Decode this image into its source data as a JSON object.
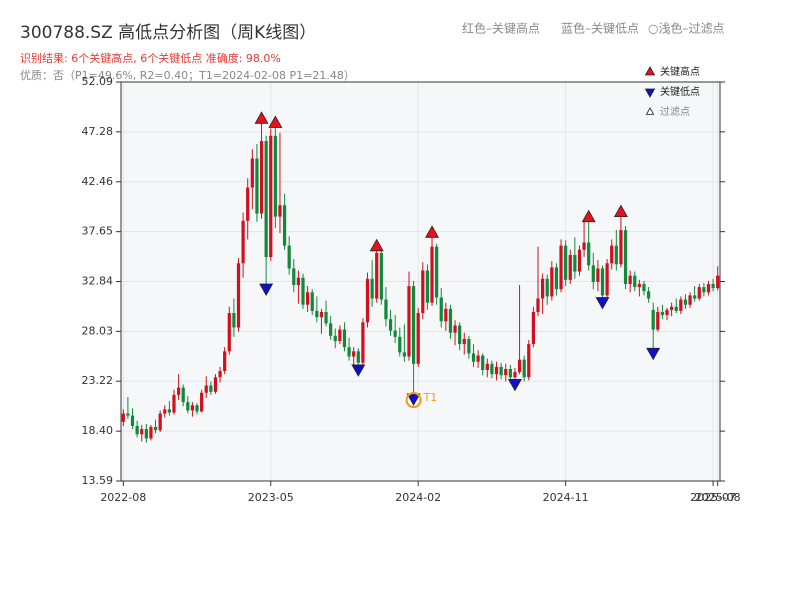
{
  "chart_data": {
    "type": "candlestick",
    "title": "300788.SZ 高低点分析图（周K线图）",
    "subtitle": "识别结果: 6个关键高点, 6个关键低点  准确度: 98.0%",
    "note": "优质：否（P1=49.6%, R2=0.40；T1=2024-02-08 P1=21.48）",
    "header_legend": [
      "红色–关键高点",
      "蓝色–关键低点",
      "○浅色–过滤点"
    ],
    "legend": [
      {
        "name": "关键高点",
        "color": "#e8101a"
      },
      {
        "name": "关键低点",
        "color": "#1010cc"
      },
      {
        "name": "过滤点",
        "color": "#ffffff"
      }
    ],
    "legend_position": "upper right",
    "up_color": "#d0101e",
    "down_color": "#108a3a",
    "ylim": [
      13.59,
      52.09
    ],
    "yticks": [
      13.59,
      {
        "value": 18.4,
        "label": "18.40"
      },
      23.22,
      28.03,
      32.84,
      37.65,
      42.46,
      47.28,
      52.09
    ],
    "xticks": [
      {
        "value": 0,
        "label": "2022-08"
      },
      {
        "value": 32,
        "label": "2023-05"
      },
      {
        "value": 64,
        "label": "2024-02"
      },
      {
        "value": 96,
        "label": "2024-11"
      },
      {
        "value": 128,
        "label": "2025-07"
      },
      {
        "value": 129,
        "label": "2025-08"
      }
    ],
    "grid": true,
    "key_highs": [
      30,
      33,
      55,
      67,
      101,
      108
    ],
    "key_lows": [
      31,
      51,
      63,
      85,
      104,
      115
    ],
    "annotations": [
      {
        "text": "T1",
        "index": 63,
        "color": "#f39c12"
      }
    ],
    "candles": [
      [
        19.3,
        20.5,
        18.9,
        20.1
      ],
      [
        20.1,
        21.7,
        19.6,
        19.9
      ],
      [
        19.9,
        20.6,
        18.6,
        18.9
      ],
      [
        18.9,
        19.4,
        17.8,
        18.1
      ],
      [
        18.1,
        19.0,
        17.4,
        18.6
      ],
      [
        18.6,
        19.1,
        17.3,
        17.7
      ],
      [
        17.7,
        19.0,
        17.5,
        18.8
      ],
      [
        18.8,
        19.5,
        18.2,
        18.5
      ],
      [
        18.5,
        20.4,
        18.3,
        20.1
      ],
      [
        20.1,
        20.9,
        19.7,
        20.5
      ],
      [
        20.5,
        21.3,
        19.9,
        20.2
      ],
      [
        20.2,
        22.4,
        20.0,
        21.9
      ],
      [
        21.9,
        23.9,
        21.4,
        22.6
      ],
      [
        22.6,
        22.9,
        20.8,
        21.2
      ],
      [
        21.2,
        21.8,
        20.1,
        20.4
      ],
      [
        20.4,
        21.2,
        19.8,
        20.9
      ],
      [
        20.9,
        21.1,
        20.0,
        20.3
      ],
      [
        20.3,
        22.4,
        20.2,
        22.1
      ],
      [
        22.1,
        23.7,
        21.6,
        22.8
      ],
      [
        22.8,
        23.2,
        21.9,
        22.2
      ],
      [
        22.2,
        23.9,
        22.0,
        23.6
      ],
      [
        23.6,
        24.6,
        23.1,
        24.2
      ],
      [
        24.2,
        26.5,
        23.9,
        26.1
      ],
      [
        26.1,
        30.4,
        25.8,
        29.8
      ],
      [
        29.8,
        31.2,
        27.5,
        28.4
      ],
      [
        28.4,
        35.1,
        28.0,
        34.6
      ],
      [
        34.6,
        39.5,
        33.2,
        38.7
      ],
      [
        38.7,
        42.8,
        36.9,
        41.9
      ],
      [
        41.9,
        45.6,
        39.8,
        44.7
      ],
      [
        44.7,
        46.1,
        38.6,
        39.4
      ],
      [
        39.4,
        48.7,
        38.9,
        46.4
      ],
      [
        46.4,
        46.9,
        32.0,
        35.2
      ],
      [
        35.2,
        47.6,
        34.8,
        46.9
      ],
      [
        46.9,
        48.3,
        38.0,
        39.1
      ],
      [
        39.1,
        47.2,
        37.5,
        40.2
      ],
      [
        40.2,
        41.3,
        35.9,
        36.3
      ],
      [
        36.3,
        37.2,
        33.5,
        34.1
      ],
      [
        34.1,
        35.0,
        31.8,
        32.5
      ],
      [
        32.5,
        33.9,
        30.7,
        33.2
      ],
      [
        33.2,
        33.6,
        30.2,
        30.6
      ],
      [
        30.6,
        32.4,
        29.9,
        31.8
      ],
      [
        31.8,
        32.1,
        29.6,
        30.0
      ],
      [
        30.0,
        31.4,
        28.9,
        29.4
      ],
      [
        29.4,
        30.2,
        27.8,
        29.9
      ],
      [
        29.9,
        31.0,
        28.5,
        28.8
      ],
      [
        28.8,
        29.5,
        27.2,
        27.6
      ],
      [
        27.6,
        28.3,
        26.4,
        27.1
      ],
      [
        27.1,
        28.6,
        26.8,
        28.2
      ],
      [
        28.2,
        28.9,
        26.1,
        26.5
      ],
      [
        26.5,
        27.4,
        25.2,
        25.6
      ],
      [
        25.6,
        26.5,
        24.8,
        26.1
      ],
      [
        26.1,
        26.4,
        24.2,
        25.0
      ],
      [
        25.0,
        29.3,
        24.8,
        28.9
      ],
      [
        28.9,
        33.7,
        28.4,
        33.1
      ],
      [
        33.1,
        34.9,
        30.4,
        31.2
      ],
      [
        31.2,
        36.4,
        30.8,
        35.6
      ],
      [
        35.6,
        35.9,
        30.6,
        31.1
      ],
      [
        31.1,
        32.3,
        28.5,
        29.2
      ],
      [
        29.2,
        30.1,
        27.6,
        28.1
      ],
      [
        28.1,
        29.6,
        26.9,
        27.5
      ],
      [
        27.5,
        28.4,
        25.6,
        26.0
      ],
      [
        26.0,
        28.7,
        25.1,
        25.6
      ],
      [
        25.6,
        33.8,
        25.2,
        32.4
      ],
      [
        32.4,
        32.9,
        21.4,
        24.9
      ],
      [
        24.9,
        30.3,
        24.6,
        29.8
      ],
      [
        29.8,
        34.7,
        29.2,
        33.9
      ],
      [
        33.9,
        34.5,
        30.1,
        30.8
      ],
      [
        30.8,
        37.7,
        30.5,
        36.2
      ],
      [
        36.2,
        36.5,
        30.6,
        31.3
      ],
      [
        31.3,
        32.2,
        28.4,
        29.0
      ],
      [
        29.0,
        30.8,
        28.1,
        30.2
      ],
      [
        30.2,
        30.6,
        27.3,
        27.9
      ],
      [
        27.9,
        29.1,
        26.7,
        28.6
      ],
      [
        28.6,
        28.9,
        26.2,
        26.8
      ],
      [
        26.8,
        27.9,
        25.8,
        27.3
      ],
      [
        27.3,
        27.6,
        25.4,
        25.9
      ],
      [
        25.9,
        26.8,
        24.6,
        25.1
      ],
      [
        25.1,
        26.2,
        24.5,
        25.7
      ],
      [
        25.7,
        25.9,
        23.8,
        24.3
      ],
      [
        24.3,
        25.4,
        23.6,
        24.9
      ],
      [
        24.9,
        25.2,
        23.5,
        23.9
      ],
      [
        23.9,
        25.1,
        23.3,
        24.6
      ],
      [
        24.6,
        25.0,
        23.4,
        23.8
      ],
      [
        23.8,
        24.9,
        23.2,
        24.4
      ],
      [
        24.4,
        24.8,
        23.0,
        23.6
      ],
      [
        23.6,
        24.5,
        22.8,
        24.1
      ],
      [
        24.1,
        32.5,
        23.9,
        25.3
      ],
      [
        25.3,
        25.7,
        23.2,
        23.6
      ],
      [
        23.6,
        27.2,
        23.3,
        26.8
      ],
      [
        26.8,
        30.4,
        26.5,
        29.9
      ],
      [
        29.9,
        36.2,
        29.5,
        31.2
      ],
      [
        31.2,
        33.6,
        29.7,
        33.1
      ],
      [
        33.1,
        33.5,
        30.6,
        31.4
      ],
      [
        31.4,
        34.8,
        31.0,
        34.2
      ],
      [
        34.2,
        34.6,
        31.5,
        32.1
      ],
      [
        32.1,
        36.9,
        31.8,
        36.3
      ],
      [
        36.3,
        36.8,
        32.4,
        33.0
      ],
      [
        33.0,
        35.9,
        32.6,
        35.4
      ],
      [
        35.4,
        37.1,
        33.1,
        33.8
      ],
      [
        33.8,
        36.3,
        33.4,
        35.9
      ],
      [
        35.9,
        38.7,
        35.2,
        36.6
      ],
      [
        36.6,
        39.2,
        33.9,
        34.4
      ],
      [
        34.4,
        35.6,
        32.1,
        32.8
      ],
      [
        32.8,
        34.9,
        31.9,
        34.1
      ],
      [
        34.1,
        34.4,
        30.7,
        31.5
      ],
      [
        31.5,
        35.0,
        31.2,
        34.6
      ],
      [
        34.6,
        36.9,
        34.0,
        36.3
      ],
      [
        36.3,
        37.8,
        33.9,
        34.5
      ],
      [
        34.5,
        39.7,
        34.2,
        37.8
      ],
      [
        37.8,
        38.2,
        32.1,
        32.6
      ],
      [
        32.6,
        33.9,
        31.8,
        33.4
      ],
      [
        33.4,
        33.8,
        31.9,
        32.3
      ],
      [
        32.3,
        33.0,
        31.4,
        32.6
      ],
      [
        32.6,
        32.9,
        31.5,
        31.9
      ],
      [
        31.9,
        32.3,
        30.8,
        31.2
      ],
      [
        30.1,
        30.8,
        25.8,
        28.2
      ],
      [
        28.2,
        30.4,
        28.0,
        29.9
      ],
      [
        29.9,
        30.6,
        29.2,
        29.6
      ],
      [
        29.6,
        30.3,
        29.1,
        30.1
      ],
      [
        30.1,
        30.8,
        29.5,
        30.4
      ],
      [
        30.4,
        31.2,
        29.8,
        30.0
      ],
      [
        30.0,
        31.4,
        29.7,
        31.1
      ],
      [
        31.1,
        31.6,
        30.2,
        30.6
      ],
      [
        30.6,
        31.8,
        30.3,
        31.5
      ],
      [
        31.5,
        32.4,
        30.9,
        31.2
      ],
      [
        31.2,
        32.6,
        31.0,
        32.3
      ],
      [
        32.3,
        32.7,
        31.4,
        31.8
      ],
      [
        31.8,
        32.9,
        31.5,
        32.6
      ],
      [
        32.6,
        33.1,
        31.9,
        32.2
      ],
      [
        32.2,
        34.3,
        32.0,
        33.4
      ]
    ]
  }
}
